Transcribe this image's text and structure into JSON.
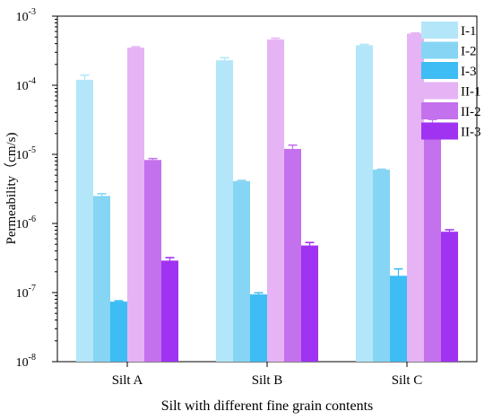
{
  "chart_data": {
    "type": "bar",
    "y_scale": "log",
    "ylim": [
      1e-08,
      0.001
    ],
    "xlabel": "Silt with different fine grain contents",
    "ylabel": "Permeability（cm/s)",
    "categories": [
      "Silt A",
      "Silt B",
      "Silt C"
    ],
    "y_ticks": [
      {
        "value": 1e-08,
        "base": "10",
        "exp": "-8"
      },
      {
        "value": 1e-07,
        "base": "10",
        "exp": "-7"
      },
      {
        "value": 1e-06,
        "base": "10",
        "exp": "-6"
      },
      {
        "value": 1e-05,
        "base": "10",
        "exp": "-5"
      },
      {
        "value": 0.0001,
        "base": "10",
        "exp": "-4"
      },
      {
        "value": 0.001,
        "base": "10",
        "exp": "-3"
      }
    ],
    "legend_position": "top-right",
    "grid": false,
    "error_bars": true,
    "series": [
      {
        "name": "I-1",
        "color": "#B3E6F8",
        "values": [
          0.00012,
          0.00023,
          0.00038
        ],
        "errors": [
          0.00014,
          0.00025,
          0.00039
        ]
      },
      {
        "name": "I-2",
        "color": "#86D5F4",
        "values": [
          2.5e-06,
          4.1e-06,
          6e-06
        ],
        "errors": [
          2.7e-06,
          4.2e-06,
          6.1e-06
        ]
      },
      {
        "name": "I-3",
        "color": "#3DBDF4",
        "values": [
          7.4e-08,
          9.4e-08,
          1.75e-07
        ],
        "errors": [
          7.6e-08,
          9.9e-08,
          2.2e-07
        ]
      },
      {
        "name": "II-1",
        "color": "#E6B3F5",
        "values": [
          0.00035,
          0.00046,
          0.00056
        ],
        "errors": [
          0.00036,
          0.00048,
          0.00057
        ]
      },
      {
        "name": "II-2",
        "color": "#C471EE",
        "values": [
          8.3e-06,
          1.2e-05,
          2.9e-05
        ],
        "errors": [
          8.7e-06,
          1.36e-05,
          3.2e-05
        ]
      },
      {
        "name": "II-3",
        "color": "#A033F2",
        "values": [
          2.9e-07,
          4.8e-07,
          7.6e-07
        ],
        "errors": [
          3.2e-07,
          5.3e-07,
          8.1e-07
        ]
      }
    ]
  }
}
